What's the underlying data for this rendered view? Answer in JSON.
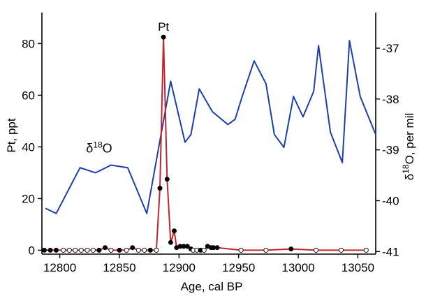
{
  "chart_data": {
    "type": "line",
    "xlabel": "Age, cal BP",
    "ylabel_left": "Pt, ppt",
    "ylabel_right": "δ18O, per mil",
    "xlim": [
      12785,
      13065
    ],
    "ylim_left": [
      -1.5,
      92
    ],
    "ylim_right": [
      -41.05,
      -36.3
    ],
    "xticks": [
      12800,
      12850,
      12900,
      12950,
      13000,
      13050
    ],
    "yticks_left": [
      0,
      20,
      40,
      60,
      80
    ],
    "yticks_right": [
      -37,
      -38,
      -39,
      -40,
      -41
    ],
    "grid": false,
    "annotations": [
      {
        "text": "Pt",
        "x": 12887,
        "y_left": 82.5
      },
      {
        "text": "δ18O",
        "x": 12833,
        "y_right": -39.05
      }
    ],
    "series": [
      {
        "name": "δ18O",
        "axis": "right",
        "color": "#1f3fa8",
        "x": [
          12788,
          12797,
          12817,
          12830,
          12843,
          12857,
          12873,
          12893,
          12905,
          12910,
          12917,
          12928,
          12941,
          12947,
          12953,
          12963,
          12973,
          12980,
          12988,
          12996,
          13004,
          13013,
          13017,
          13027,
          13037,
          13043,
          13052,
          13065
        ],
        "y": [
          -40.15,
          -40.25,
          -39.35,
          -39.45,
          -39.3,
          -39.35,
          -40.25,
          -37.65,
          -38.85,
          -38.7,
          -37.8,
          -38.25,
          -38.5,
          -38.4,
          -37.95,
          -37.25,
          -37.7,
          -38.7,
          -38.95,
          -37.95,
          -38.35,
          -37.85,
          -36.95,
          -38.65,
          -39.25,
          -36.85,
          -37.95,
          -38.7
        ]
      },
      {
        "name": "Pt",
        "axis": "left",
        "color": "#c0272d",
        "x": [
          12787,
          12792,
          12797,
          12803,
          12808,
          12813,
          12818,
          12823,
          12828,
          12833,
          12838,
          12843,
          12850,
          12856,
          12861,
          12866,
          12871,
          12876,
          12881,
          12884,
          12887,
          12890,
          12893,
          12896,
          12898,
          12901,
          12904,
          12907,
          12910,
          12912,
          12915,
          12918,
          12921,
          12924,
          12927,
          12929,
          12932,
          12952,
          12973,
          12994,
          13015,
          13036,
          13057
        ],
        "y": [
          0,
          0,
          0,
          0,
          0,
          0,
          0,
          0,
          0,
          0,
          1,
          0,
          0,
          0,
          1,
          0,
          0,
          0,
          0,
          24,
          82.5,
          27.5,
          3,
          7.5,
          1,
          1.5,
          1.5,
          1.5,
          0.5,
          0,
          0,
          0,
          0,
          1.5,
          1,
          1,
          1,
          0,
          0,
          0.5,
          0,
          0,
          0
        ],
        "marker_filled": [
          1,
          1,
          1,
          0,
          0,
          0,
          0,
          0,
          0,
          1,
          1,
          0,
          1,
          0,
          1,
          0,
          0,
          1,
          0,
          1,
          1,
          1,
          1,
          1,
          1,
          1,
          1,
          1,
          1,
          0,
          0,
          1,
          0,
          1,
          1,
          1,
          1,
          0,
          0,
          1,
          0,
          0,
          0
        ]
      }
    ]
  }
}
